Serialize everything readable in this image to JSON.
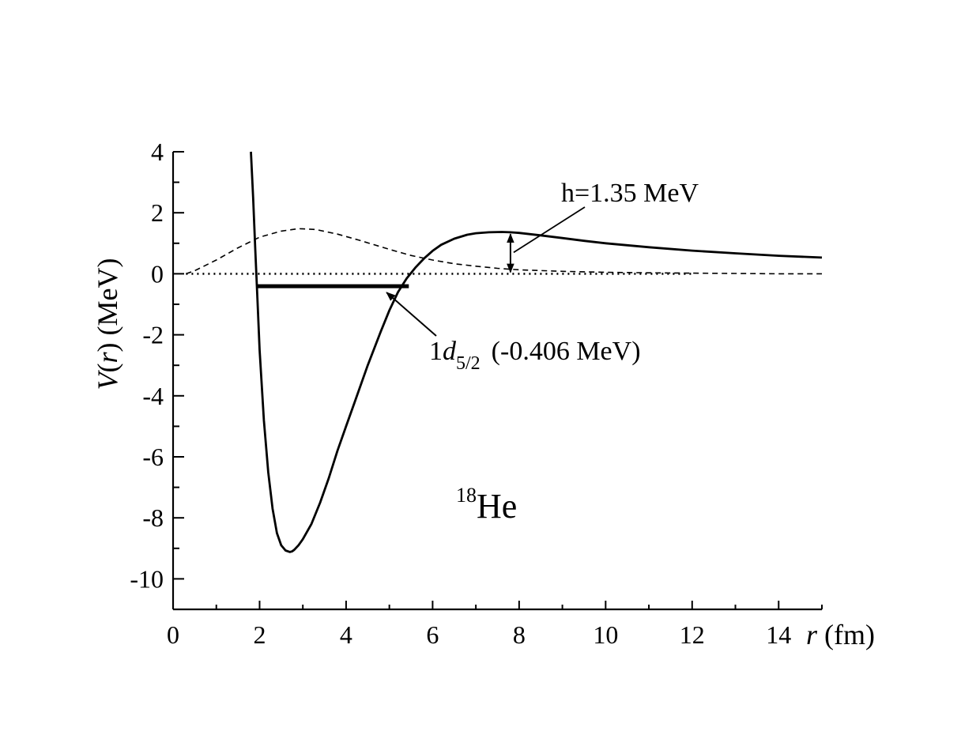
{
  "chart_data": {
    "type": "line",
    "xlabel": {
      "var": "r",
      "unit": "(fm)"
    },
    "ylabel": {
      "func": "V",
      "arg": "r",
      "unit": "(MeV)"
    },
    "xlim": [
      0,
      15
    ],
    "ylim": [
      -11,
      4
    ],
    "x_major_ticks": [
      0,
      2,
      4,
      6,
      8,
      10,
      12,
      14
    ],
    "x_tick_labels": [
      "0",
      "2",
      "4",
      "6",
      "8",
      "10",
      "12",
      "14"
    ],
    "y_major_ticks": [
      4,
      2,
      0,
      -2,
      -4,
      -6,
      -8,
      -10
    ],
    "y_tick_labels": [
      "4",
      "2",
      "0",
      "-2",
      "-4",
      "-6",
      "-8",
      "-10"
    ],
    "grid": false,
    "series": [
      {
        "style": "solid",
        "x": [
          1.8,
          1.85,
          1.9,
          1.95,
          2.0,
          2.1,
          2.2,
          2.3,
          2.4,
          2.5,
          2.6,
          2.7,
          2.75,
          2.8,
          2.9,
          3.0,
          3.2,
          3.4,
          3.6,
          3.8,
          4.0,
          4.2,
          4.5,
          4.8,
          5.0,
          5.2,
          5.4,
          5.6,
          5.8,
          6.0,
          6.2,
          6.5,
          6.8,
          7.0,
          7.3,
          7.6,
          7.8,
          8.0,
          8.5,
          9.0,
          9.5,
          10.0,
          11.0,
          12.0,
          13.0,
          14.0,
          15.0
        ],
        "y": [
          4.0,
          2.5,
          0.8,
          -0.8,
          -2.5,
          -4.8,
          -6.5,
          -7.7,
          -8.5,
          -8.9,
          -9.07,
          -9.12,
          -9.1,
          -9.05,
          -8.9,
          -8.7,
          -8.2,
          -7.5,
          -6.7,
          -5.8,
          -5.0,
          -4.2,
          -3.0,
          -1.9,
          -1.2,
          -0.6,
          -0.15,
          0.2,
          0.5,
          0.75,
          0.95,
          1.15,
          1.28,
          1.33,
          1.36,
          1.37,
          1.36,
          1.34,
          1.26,
          1.17,
          1.08,
          1.0,
          0.87,
          0.76,
          0.67,
          0.59,
          0.53
        ]
      },
      {
        "style": "dashed",
        "x": [
          0.3,
          0.5,
          1.0,
          1.5,
          2.0,
          2.5,
          2.9,
          3.3,
          3.8,
          4.3,
          5.0,
          5.5,
          6.0,
          6.5,
          7.0,
          7.5,
          8.0,
          9.0,
          10.0,
          11.0,
          12.0,
          13.0,
          14.0,
          15.0
        ],
        "y": [
          0.0,
          0.1,
          0.45,
          0.85,
          1.2,
          1.4,
          1.48,
          1.45,
          1.3,
          1.1,
          0.8,
          0.6,
          0.45,
          0.33,
          0.25,
          0.18,
          0.13,
          0.08,
          0.05,
          0.03,
          0.02,
          0.01,
          0.0,
          0.0
        ]
      },
      {
        "style": "dotted",
        "x": [
          0.3,
          12.0
        ],
        "y": [
          0.0,
          0.0
        ]
      }
    ],
    "annotations": {
      "barrier": {
        "label": "h=1.35 MeV",
        "x": 7.8,
        "y_low": 0.0,
        "y_high": 1.35
      },
      "level": {
        "label_prefix": "1",
        "label_italic": "d",
        "label_sub": "5/2",
        "label_value": "(-0.406 MeV)",
        "energy": -0.406,
        "x_start": 1.95,
        "x_end": 5.45
      },
      "nucleus": {
        "mass": "18",
        "symbol": "He"
      }
    }
  }
}
